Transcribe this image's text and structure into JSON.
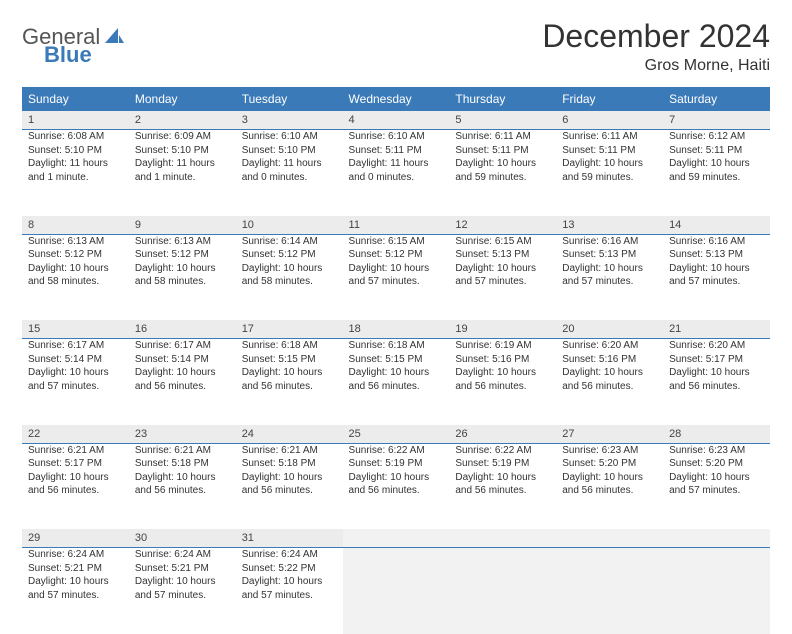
{
  "brand": {
    "text1": "General",
    "text2": "Blue"
  },
  "title": "December 2024",
  "location": "Gros Morne, Haiti",
  "colors": {
    "header_bg": "#3a7ab8",
    "header_fg": "#ffffff",
    "daynum_bg": "#ececec",
    "blank_bg": "#f2f2f2",
    "rule": "#3a7ab8",
    "text": "#333333"
  },
  "weekdays": [
    "Sunday",
    "Monday",
    "Tuesday",
    "Wednesday",
    "Thursday",
    "Friday",
    "Saturday"
  ],
  "grid": {
    "rows": 5,
    "cols": 7,
    "start_offset": 0,
    "days_in_month": 31
  },
  "days": {
    "1": {
      "sunrise": "6:08 AM",
      "sunset": "5:10 PM",
      "daylight": "11 hours and 1 minute."
    },
    "2": {
      "sunrise": "6:09 AM",
      "sunset": "5:10 PM",
      "daylight": "11 hours and 1 minute."
    },
    "3": {
      "sunrise": "6:10 AM",
      "sunset": "5:10 PM",
      "daylight": "11 hours and 0 minutes."
    },
    "4": {
      "sunrise": "6:10 AM",
      "sunset": "5:11 PM",
      "daylight": "11 hours and 0 minutes."
    },
    "5": {
      "sunrise": "6:11 AM",
      "sunset": "5:11 PM",
      "daylight": "10 hours and 59 minutes."
    },
    "6": {
      "sunrise": "6:11 AM",
      "sunset": "5:11 PM",
      "daylight": "10 hours and 59 minutes."
    },
    "7": {
      "sunrise": "6:12 AM",
      "sunset": "5:11 PM",
      "daylight": "10 hours and 59 minutes."
    },
    "8": {
      "sunrise": "6:13 AM",
      "sunset": "5:12 PM",
      "daylight": "10 hours and 58 minutes."
    },
    "9": {
      "sunrise": "6:13 AM",
      "sunset": "5:12 PM",
      "daylight": "10 hours and 58 minutes."
    },
    "10": {
      "sunrise": "6:14 AM",
      "sunset": "5:12 PM",
      "daylight": "10 hours and 58 minutes."
    },
    "11": {
      "sunrise": "6:15 AM",
      "sunset": "5:12 PM",
      "daylight": "10 hours and 57 minutes."
    },
    "12": {
      "sunrise": "6:15 AM",
      "sunset": "5:13 PM",
      "daylight": "10 hours and 57 minutes."
    },
    "13": {
      "sunrise": "6:16 AM",
      "sunset": "5:13 PM",
      "daylight": "10 hours and 57 minutes."
    },
    "14": {
      "sunrise": "6:16 AM",
      "sunset": "5:13 PM",
      "daylight": "10 hours and 57 minutes."
    },
    "15": {
      "sunrise": "6:17 AM",
      "sunset": "5:14 PM",
      "daylight": "10 hours and 57 minutes."
    },
    "16": {
      "sunrise": "6:17 AM",
      "sunset": "5:14 PM",
      "daylight": "10 hours and 56 minutes."
    },
    "17": {
      "sunrise": "6:18 AM",
      "sunset": "5:15 PM",
      "daylight": "10 hours and 56 minutes."
    },
    "18": {
      "sunrise": "6:18 AM",
      "sunset": "5:15 PM",
      "daylight": "10 hours and 56 minutes."
    },
    "19": {
      "sunrise": "6:19 AM",
      "sunset": "5:16 PM",
      "daylight": "10 hours and 56 minutes."
    },
    "20": {
      "sunrise": "6:20 AM",
      "sunset": "5:16 PM",
      "daylight": "10 hours and 56 minutes."
    },
    "21": {
      "sunrise": "6:20 AM",
      "sunset": "5:17 PM",
      "daylight": "10 hours and 56 minutes."
    },
    "22": {
      "sunrise": "6:21 AM",
      "sunset": "5:17 PM",
      "daylight": "10 hours and 56 minutes."
    },
    "23": {
      "sunrise": "6:21 AM",
      "sunset": "5:18 PM",
      "daylight": "10 hours and 56 minutes."
    },
    "24": {
      "sunrise": "6:21 AM",
      "sunset": "5:18 PM",
      "daylight": "10 hours and 56 minutes."
    },
    "25": {
      "sunrise": "6:22 AM",
      "sunset": "5:19 PM",
      "daylight": "10 hours and 56 minutes."
    },
    "26": {
      "sunrise": "6:22 AM",
      "sunset": "5:19 PM",
      "daylight": "10 hours and 56 minutes."
    },
    "27": {
      "sunrise": "6:23 AM",
      "sunset": "5:20 PM",
      "daylight": "10 hours and 56 minutes."
    },
    "28": {
      "sunrise": "6:23 AM",
      "sunset": "5:20 PM",
      "daylight": "10 hours and 57 minutes."
    },
    "29": {
      "sunrise": "6:24 AM",
      "sunset": "5:21 PM",
      "daylight": "10 hours and 57 minutes."
    },
    "30": {
      "sunrise": "6:24 AM",
      "sunset": "5:21 PM",
      "daylight": "10 hours and 57 minutes."
    },
    "31": {
      "sunrise": "6:24 AM",
      "sunset": "5:22 PM",
      "daylight": "10 hours and 57 minutes."
    }
  },
  "labels": {
    "sunrise_prefix": "Sunrise: ",
    "sunset_prefix": "Sunset: ",
    "daylight_prefix": "Daylight: "
  }
}
